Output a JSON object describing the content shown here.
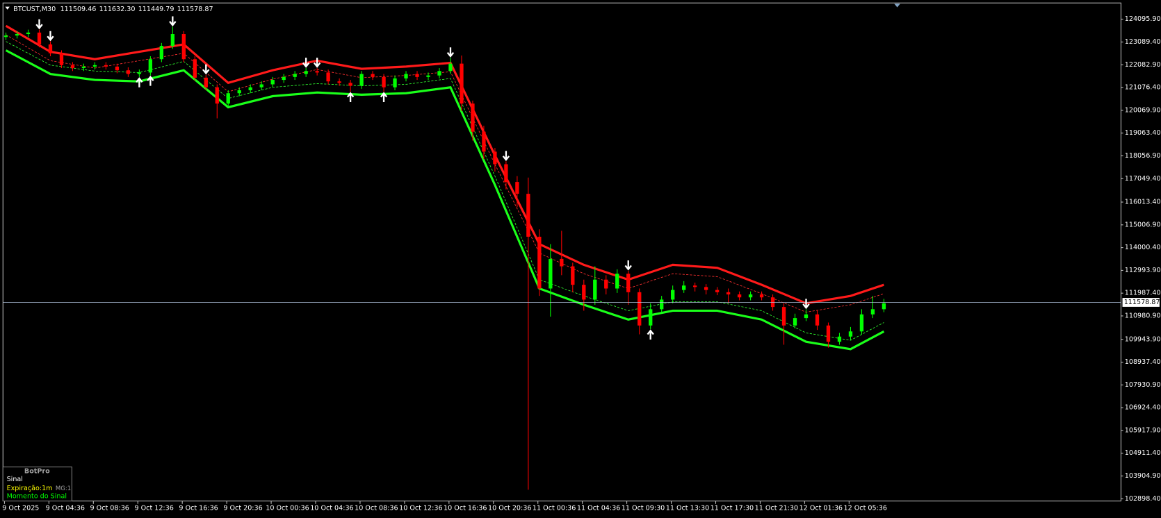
{
  "chart_data": {
    "type": "candlestick",
    "header": {
      "symbol": "BTCUST,M30",
      "ohlc": [
        "111509.46",
        "111632.30",
        "111449.79",
        "111578.87"
      ]
    },
    "ylim": [
      102800,
      124816
    ],
    "yticks": [
      {
        "value": 124095.9,
        "label": "124095.90"
      },
      {
        "value": 123089.4,
        "label": "123089.40"
      },
      {
        "value": 122082.9,
        "label": "122082.90"
      },
      {
        "value": 121076.4,
        "label": "121076.40"
      },
      {
        "value": 120069.9,
        "label": "120069.90"
      },
      {
        "value": 119063.4,
        "label": "119063.40"
      },
      {
        "value": 118056.9,
        "label": "118056.90"
      },
      {
        "value": 117049.4,
        "label": "117049.40"
      },
      {
        "value": 116013.4,
        "label": "116013.40"
      },
      {
        "value": 115006.9,
        "label": "115006.90"
      },
      {
        "value": 114000.4,
        "label": "114000.40"
      },
      {
        "value": 112993.9,
        "label": "112993.90"
      },
      {
        "value": 111987.4,
        "label": "111987.40"
      },
      {
        "value": 110980.9,
        "label": "110980.90"
      },
      {
        "value": 109943.9,
        "label": "109943.90"
      },
      {
        "value": 108937.4,
        "label": "108937.40"
      },
      {
        "value": 107930.9,
        "label": "107930.90"
      },
      {
        "value": 106924.4,
        "label": "106924.40"
      },
      {
        "value": 105917.9,
        "label": "105917.90"
      },
      {
        "value": 104911.4,
        "label": "104911.40"
      },
      {
        "value": 103904.9,
        "label": "103904.90"
      },
      {
        "value": 102898.4,
        "label": "102898.40"
      }
    ],
    "x_labels": [
      "9 Oct 2025",
      "9 Oct 04:36",
      "9 Oct 08:36",
      "9 Oct 12:36",
      "9 Oct 16:36",
      "9 Oct 20:36",
      "10 Oct 00:36",
      "10 Oct 04:36",
      "10 Oct 08:36",
      "10 Oct 12:36",
      "10 Oct 16:36",
      "10 Oct 20:36",
      "11 Oct 00:36",
      "11 Oct 04:36",
      "11 Oct 09:30",
      "11 Oct 13:30",
      "11 Oct 17:30",
      "11 Oct 21:30",
      "12 Oct 01:36",
      "12 Oct 05:36"
    ],
    "up_color": "#00ff00",
    "down_color": "#ff0000",
    "open": [
      123311,
      123376,
      123442,
      123507,
      122984,
      122592,
      122068,
      121938,
      122003,
      122068,
      122003,
      121840,
      121676,
      121741,
      122330,
      122919,
      123442,
      122330,
      121513,
      121087,
      120368,
      120826,
      120957,
      121087,
      121218,
      121414,
      121545,
      121676,
      121807,
      121741,
      121349,
      121284,
      121153,
      121676,
      121545,
      121087,
      121480,
      121676,
      121545,
      121611,
      121807,
      122134,
      120368,
      119125,
      118243,
      117687,
      116902,
      116379,
      114482,
      112193,
      113501,
      113174,
      112357,
      111703,
      112585,
      112193,
      112847,
      112030,
      110558,
      111277,
      111703,
      112128,
      112324,
      112258,
      112128,
      112030,
      111931,
      111801,
      111931,
      111801,
      111376,
      110558,
      110885,
      111049,
      110558,
      109839,
      110068,
      110296,
      111049,
      111277
    ],
    "high": [
      123507,
      123573,
      123638,
      123638,
      123115,
      122722,
      122199,
      122134,
      122199,
      122199,
      122134,
      121970,
      121872,
      122461,
      123049,
      123769,
      123573,
      122461,
      121643,
      121218,
      120957,
      121087,
      121218,
      121349,
      121545,
      121676,
      121807,
      121938,
      121938,
      121872,
      121480,
      121414,
      121807,
      121807,
      121676,
      121611,
      121807,
      121807,
      121741,
      121938,
      122395,
      122494,
      120499,
      119387,
      118406,
      117817,
      117163,
      117098,
      114809,
      114155,
      114744,
      113338,
      112585,
      113174,
      112782,
      113043,
      112978,
      112193,
      111539,
      111866,
      112324,
      112520,
      112455,
      112389,
      112258,
      112193,
      112062,
      112062,
      112062,
      111931,
      111539,
      111081,
      111277,
      111212,
      110689,
      110231,
      110493,
      111277,
      111866,
      111735
    ],
    "low": [
      123180,
      123246,
      123311,
      122853,
      122461,
      121938,
      121807,
      121807,
      121872,
      121872,
      121709,
      121545,
      121545,
      121611,
      122199,
      122788,
      122199,
      121382,
      120957,
      119714,
      120237,
      120695,
      120826,
      120957,
      121087,
      121284,
      121414,
      121545,
      121611,
      121218,
      121153,
      120891,
      121022,
      121414,
      120891,
      120957,
      121349,
      121414,
      121414,
      121480,
      121676,
      120041,
      118733,
      117916,
      117360,
      116575,
      115790,
      103299,
      111866,
      110950,
      112782,
      112030,
      111212,
      111474,
      111931,
      111997,
      111474,
      110166,
      110395,
      111147,
      111539,
      111997,
      112062,
      111931,
      111899,
      111539,
      111670,
      111670,
      111670,
      111212,
      109708,
      110427,
      110754,
      110362,
      109577,
      109708,
      109904,
      110166,
      110885,
      111147
    ],
    "close": [
      123376,
      123442,
      123507,
      122984,
      122592,
      122068,
      121938,
      122003,
      122068,
      122003,
      121840,
      121676,
      121741,
      122330,
      122919,
      123442,
      122330,
      121513,
      121087,
      120368,
      120826,
      120957,
      121087,
      121218,
      121414,
      121545,
      121676,
      121807,
      121741,
      121349,
      121284,
      121153,
      121676,
      121545,
      121087,
      121480,
      121676,
      121545,
      121611,
      121807,
      122134,
      120368,
      119125,
      118243,
      117687,
      116902,
      116379,
      114482,
      112193,
      113501,
      113174,
      112357,
      111703,
      112585,
      112193,
      112847,
      112030,
      110558,
      111277,
      111703,
      112128,
      112324,
      112258,
      112128,
      112030,
      111931,
      111801,
      111931,
      111801,
      111376,
      110558,
      110885,
      111049,
      110558,
      109839,
      110068,
      110296,
      111049,
      111277,
      111539
    ],
    "band_x": [
      0,
      4,
      8,
      12,
      16,
      20,
      24,
      28,
      32,
      36,
      40,
      44,
      48,
      52,
      56,
      60,
      64,
      68,
      72,
      76,
      79
    ],
    "bands": [
      {
        "color": "#ff1a1a",
        "dashed": false,
        "values": [
          123802,
          122657,
          122330,
          122657,
          122984,
          121284,
          121840,
          122265,
          121905,
          122003,
          122167,
          118079,
          114155,
          113239,
          112585,
          113239,
          113109,
          112357,
          111539,
          111866,
          112357
        ]
      },
      {
        "color": "#1aff1a",
        "dashed": false,
        "values": [
          122722,
          121676,
          121414,
          121349,
          121840,
          120205,
          120695,
          120859,
          120760,
          120826,
          121087,
          116771,
          112193,
          111474,
          110820,
          111212,
          111212,
          110820,
          109839,
          109512,
          110296
        ]
      },
      {
        "color": "#ff3030",
        "dashed": true,
        "values": [
          123410,
          122265,
          121938,
          122265,
          122592,
          120892,
          121448,
          121873,
          121513,
          121611,
          121775,
          117687,
          113763,
          112847,
          112193,
          112847,
          112717,
          111965,
          111147,
          111474,
          111965
        ]
      },
      {
        "color": "#30ff30",
        "dashed": true,
        "values": [
          123114,
          122068,
          121806,
          121741,
          122232,
          120597,
          121087,
          121251,
          121152,
          121218,
          121479,
          117163,
          112585,
          111866,
          111212,
          111604,
          111604,
          111212,
          110231,
          109904,
          110688
        ]
      }
    ],
    "sell_signals": [
      3,
      4,
      15,
      18,
      27,
      28,
      40,
      45,
      56,
      72
    ],
    "buy_signals": [
      12,
      13,
      31,
      34,
      58
    ],
    "last_price": 111578.87,
    "panel": {
      "title": "BotPro",
      "signal": "Sinal",
      "expiry": "Expiração:1m",
      "mg": "MG:1",
      "moment": "Momento do Sinal"
    }
  }
}
